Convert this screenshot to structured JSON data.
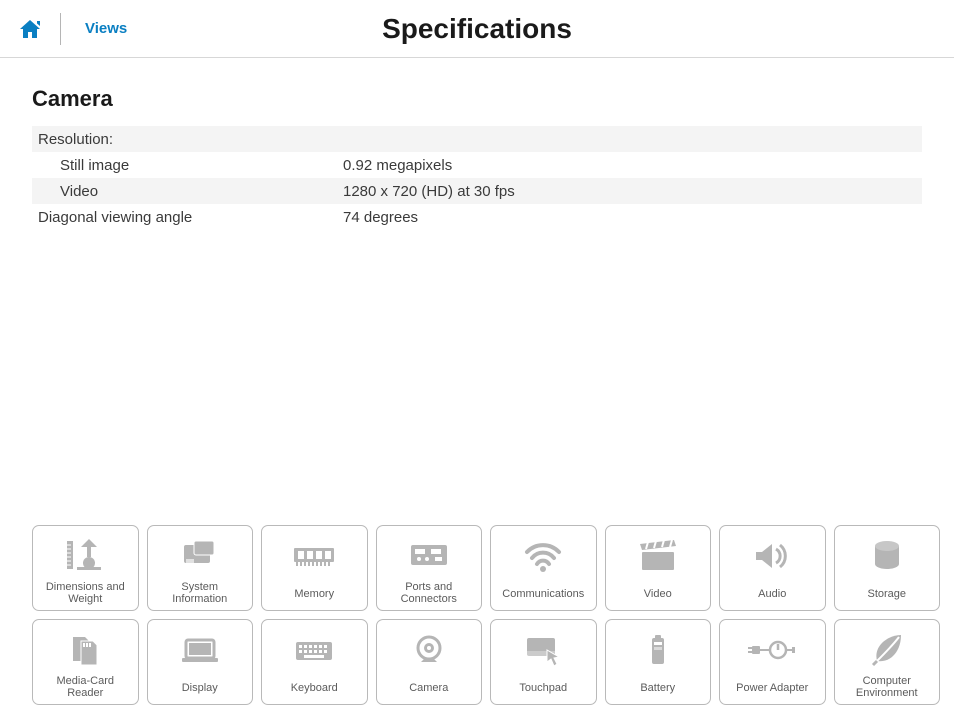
{
  "colors": {
    "accent": "#0a7fc2",
    "icon_gray": "#b5b5b5",
    "border_gray": "#b9b9b9",
    "band_gray": "#f4f4f4",
    "text": "#3a3a3a",
    "label_text": "#5b5b5b",
    "divider": "#d7d7d7"
  },
  "header": {
    "views_label": "Views",
    "title": "Specifications"
  },
  "section": {
    "title": "Camera",
    "rows": [
      {
        "label": "Resolution:",
        "value": "",
        "banded": true,
        "indent": false
      },
      {
        "label": "Still image",
        "value": "0.92 megapixels",
        "banded": false,
        "indent": true
      },
      {
        "label": "Video",
        "value": "1280 x 720 (HD) at 30 fps",
        "banded": true,
        "indent": true
      },
      {
        "label": "Diagonal viewing angle",
        "value": "74 degrees",
        "banded": false,
        "indent": false
      }
    ]
  },
  "nav": [
    {
      "id": "dimensions",
      "label": "Dimensions and\nWeight",
      "icon": "dimensions"
    },
    {
      "id": "sysinfo",
      "label": "System\nInformation",
      "icon": "sysinfo"
    },
    {
      "id": "memory",
      "label": "Memory",
      "icon": "memory"
    },
    {
      "id": "ports",
      "label": "Ports and\nConnectors",
      "icon": "ports"
    },
    {
      "id": "comm",
      "label": "Communications",
      "icon": "wifi"
    },
    {
      "id": "video",
      "label": "Video",
      "icon": "clap"
    },
    {
      "id": "audio",
      "label": "Audio",
      "icon": "speaker"
    },
    {
      "id": "storage",
      "label": "Storage",
      "icon": "cylinder"
    },
    {
      "id": "media",
      "label": "Media-Card\nReader",
      "icon": "sdcards"
    },
    {
      "id": "display",
      "label": "Display",
      "icon": "laptop"
    },
    {
      "id": "keyboard",
      "label": "Keyboard",
      "icon": "keyboard"
    },
    {
      "id": "camera",
      "label": "Camera",
      "icon": "webcam"
    },
    {
      "id": "touchpad",
      "label": "Touchpad",
      "icon": "touchpad"
    },
    {
      "id": "battery",
      "label": "Battery",
      "icon": "battery"
    },
    {
      "id": "poweradp",
      "label": "Power Adapter",
      "icon": "plug"
    },
    {
      "id": "env",
      "label": "Computer\nEnvironment",
      "icon": "leaf"
    }
  ]
}
